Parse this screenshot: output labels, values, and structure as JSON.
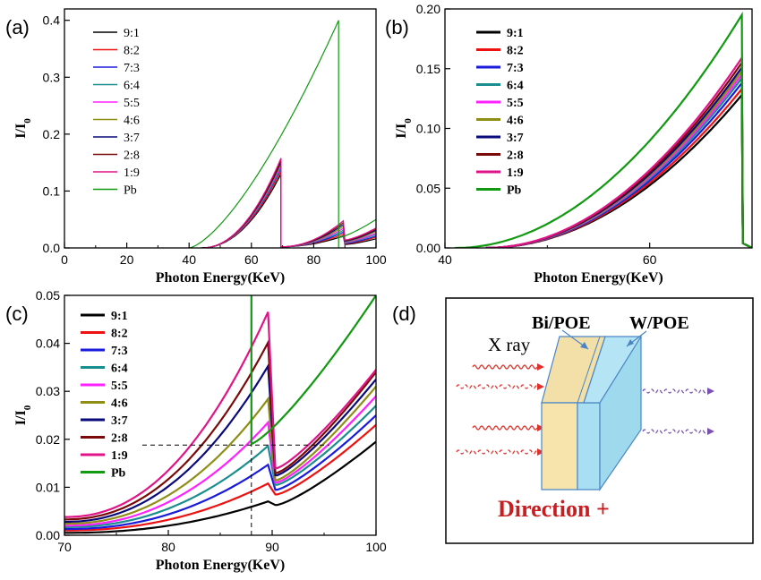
{
  "panels": [
    {
      "id": "a",
      "label": "(a)",
      "legend_weight": "normal"
    },
    {
      "id": "b",
      "label": "(b)",
      "legend_weight": "bold"
    },
    {
      "id": "c",
      "label": "(c)",
      "legend_weight": "bold"
    },
    {
      "id": "d",
      "label": "(d)"
    }
  ],
  "series_names": [
    "9:1",
    "8:2",
    "7:3",
    "6:4",
    "5:5",
    "4:6",
    "3:7",
    "2:8",
    "1:9",
    "Pb"
  ],
  "series_colors": [
    "#000000",
    "#ee1111",
    "#1a1add",
    "#1a8e8e",
    "#ff22ff",
    "#8e8e16",
    "#0a0a7a",
    "#7a0a0a",
    "#e01488",
    "#119911"
  ],
  "chart_data": [
    {
      "panel": "(a)",
      "type": "line",
      "xlabel": "Photon Energy(KeV)",
      "ylabel": "I/I0",
      "xlim": [
        0,
        100
      ],
      "ylim": [
        0,
        0.42
      ],
      "xticks": [
        0,
        20,
        40,
        60,
        80,
        100
      ],
      "yticks": [
        0.0,
        0.1,
        0.2,
        0.3,
        0.4
      ],
      "ytick_labels": [
        "0.0",
        "0.1",
        "0.2",
        "0.3",
        "0.4"
      ],
      "grid": false,
      "legend_position": "top-left",
      "series": [
        {
          "name": "9:1",
          "edge": 69.5,
          "peak": 0.13,
          "post": [
            0.0,
            0.016
          ]
        },
        {
          "name": "8:2",
          "edge": 69.5,
          "peak": 0.135,
          "post": [
            0.0,
            0.019
          ]
        },
        {
          "name": "7:3",
          "edge": 69.5,
          "peak": 0.14,
          "post": [
            0.0,
            0.021
          ]
        },
        {
          "name": "6:4",
          "edge": 69.5,
          "peak": 0.142,
          "post": [
            0.0,
            0.024
          ]
        },
        {
          "name": "5:5",
          "edge": 69.5,
          "peak": 0.145,
          "post": [
            0.0,
            0.026
          ]
        },
        {
          "name": "4:6",
          "edge": 69.5,
          "peak": 0.148,
          "post": [
            0.0,
            0.029
          ]
        },
        {
          "name": "3:7",
          "edge": 69.5,
          "peak": 0.151,
          "post": [
            0.0,
            0.031
          ]
        },
        {
          "name": "2:8",
          "edge": 69.5,
          "peak": 0.154,
          "post": [
            0.0,
            0.033
          ]
        },
        {
          "name": "1:9",
          "edge": 69.5,
          "peak": 0.158,
          "post": [
            0.0,
            0.035
          ]
        },
        {
          "name": "Pb",
          "edge": 88,
          "peak": 0.4,
          "post": [
            0.018,
            0.05
          ]
        }
      ]
    },
    {
      "panel": "(b)",
      "type": "line",
      "xlabel": "Photon Energy(KeV)",
      "ylabel": "I/I0",
      "xlim": [
        40,
        70
      ],
      "ylim": [
        0,
        0.2
      ],
      "xticks": [
        40,
        60
      ],
      "yticks": [
        0.0,
        0.05,
        0.1,
        0.15,
        0.2
      ],
      "ytick_labels": [
        "0.00",
        "0.05",
        "0.10",
        "0.15",
        "0.20"
      ],
      "grid": false,
      "legend_position": "top-left",
      "series": [
        {
          "name": "9:1",
          "start": 44,
          "end_value": 0.128
        },
        {
          "name": "8:2",
          "start": 44,
          "end_value": 0.133
        },
        {
          "name": "7:3",
          "start": 44,
          "end_value": 0.138
        },
        {
          "name": "6:4",
          "start": 44,
          "end_value": 0.142
        },
        {
          "name": "5:5",
          "start": 44,
          "end_value": 0.145
        },
        {
          "name": "4:6",
          "start": 44,
          "end_value": 0.148
        },
        {
          "name": "3:7",
          "start": 44,
          "end_value": 0.151
        },
        {
          "name": "2:8",
          "start": 44,
          "end_value": 0.155
        },
        {
          "name": "1:9",
          "start": 44,
          "end_value": 0.159
        },
        {
          "name": "Pb",
          "start": 41,
          "end_value": 0.195
        }
      ]
    },
    {
      "panel": "(c)",
      "type": "line",
      "xlabel": "Photon Energy(KeV)",
      "ylabel": "I/I0",
      "xlim": [
        70,
        100
      ],
      "ylim": [
        0,
        0.05
      ],
      "xticks": [
        70,
        80,
        90,
        100
      ],
      "yticks": [
        0.0,
        0.01,
        0.02,
        0.03,
        0.04,
        0.05
      ],
      "ytick_labels": [
        "0.00",
        "0.01",
        "0.02",
        "0.03",
        "0.04",
        "0.05"
      ],
      "grid": false,
      "legend_position": "top-left",
      "guide_x": 88,
      "guide_y": 0.0188,
      "series": [
        {
          "name": "9:1",
          "at70": 0.0005,
          "peak": 0.0072,
          "dip": 0.0063,
          "at100": 0.0195
        },
        {
          "name": "8:2",
          "at70": 0.001,
          "peak": 0.011,
          "dip": 0.0085,
          "at100": 0.023
        },
        {
          "name": "7:3",
          "at70": 0.0013,
          "peak": 0.015,
          "dip": 0.0095,
          "at100": 0.025
        },
        {
          "name": "6:4",
          "at70": 0.0017,
          "peak": 0.019,
          "dip": 0.0105,
          "at100": 0.027
        },
        {
          "name": "5:5",
          "at70": 0.002,
          "peak": 0.024,
          "dip": 0.011,
          "at100": 0.029
        },
        {
          "name": "4:6",
          "at70": 0.0024,
          "peak": 0.029,
          "dip": 0.0115,
          "at100": 0.031
        },
        {
          "name": "3:7",
          "at70": 0.0028,
          "peak": 0.036,
          "dip": 0.0125,
          "at100": 0.0325
        },
        {
          "name": "2:8",
          "at70": 0.0033,
          "peak": 0.041,
          "dip": 0.013,
          "at100": 0.034
        },
        {
          "name": "1:9",
          "at70": 0.0038,
          "peak": 0.0475,
          "dip": 0.014,
          "at100": 0.0345
        },
        {
          "name": "Pb",
          "edge": 88,
          "dip": 0.019,
          "at100": 0.05
        }
      ]
    }
  ],
  "diagram": {
    "label_bi": "Bi/POE",
    "label_w": "W/POE",
    "label_xray": "X ray",
    "direction": "Direction +",
    "colors": {
      "bi": "#f7e4ad",
      "w": "#a9dff2",
      "edge": "#4a86c5",
      "ray_red": "#e2302a",
      "ray_purple": "#7a50b0",
      "direction": "#c81e22"
    }
  }
}
